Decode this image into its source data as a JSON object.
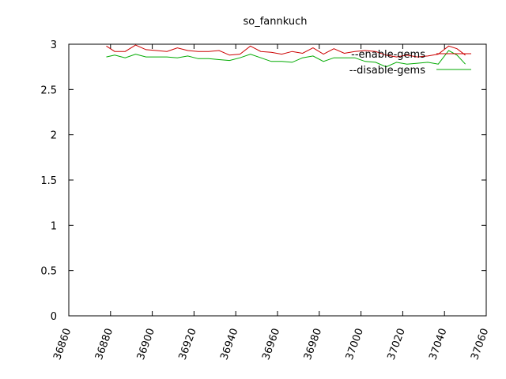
{
  "chart_data": {
    "type": "line",
    "title": "so_fannkuch",
    "xlabel": "",
    "ylabel": "",
    "xlim": [
      36860,
      37060
    ],
    "ylim": [
      0,
      3
    ],
    "x_ticks": [
      36860,
      36880,
      36900,
      36920,
      36940,
      36960,
      36980,
      37000,
      37020,
      37040,
      37060
    ],
    "y_ticks": [
      0,
      0.5,
      1,
      1.5,
      2,
      2.5,
      3
    ],
    "grid": false,
    "legend_position": "top-right",
    "series": [
      {
        "name": "--enable-gems",
        "color": "#cc0000",
        "x": [
          36878,
          36882,
          36887,
          36892,
          36897,
          36902,
          36907,
          36912,
          36917,
          36922,
          36927,
          36932,
          36937,
          36942,
          36947,
          36952,
          36957,
          36962,
          36967,
          36972,
          36977,
          36982,
          36987,
          36992,
          36997,
          37002,
          37007,
          37012,
          37017,
          37022,
          37027,
          37032,
          37037,
          37042,
          37046,
          37050
        ],
        "values": [
          2.98,
          2.92,
          2.92,
          2.99,
          2.94,
          2.93,
          2.92,
          2.96,
          2.93,
          2.92,
          2.92,
          2.93,
          2.88,
          2.89,
          2.98,
          2.92,
          2.91,
          2.89,
          2.92,
          2.9,
          2.96,
          2.89,
          2.95,
          2.9,
          2.92,
          2.93,
          2.92,
          2.88,
          2.86,
          2.88,
          2.86,
          2.87,
          2.89,
          2.98,
          2.95,
          2.88
        ]
      },
      {
        "name": "--disable-gems",
        "color": "#00aa00",
        "x": [
          36878,
          36882,
          36887,
          36892,
          36897,
          36902,
          36907,
          36912,
          36917,
          36922,
          36927,
          36932,
          36937,
          36942,
          36947,
          36952,
          36957,
          36962,
          36967,
          36972,
          36977,
          36982,
          36987,
          36992,
          36997,
          37002,
          37007,
          37012,
          37017,
          37022,
          37027,
          37032,
          37037,
          37042,
          37046,
          37050
        ],
        "values": [
          2.86,
          2.88,
          2.85,
          2.89,
          2.86,
          2.86,
          2.86,
          2.85,
          2.87,
          2.84,
          2.84,
          2.83,
          2.82,
          2.85,
          2.89,
          2.85,
          2.81,
          2.81,
          2.8,
          2.85,
          2.87,
          2.81,
          2.85,
          2.85,
          2.85,
          2.81,
          2.8,
          2.75,
          2.8,
          2.78,
          2.79,
          2.8,
          2.78,
          2.93,
          2.88,
          2.78
        ]
      }
    ]
  }
}
